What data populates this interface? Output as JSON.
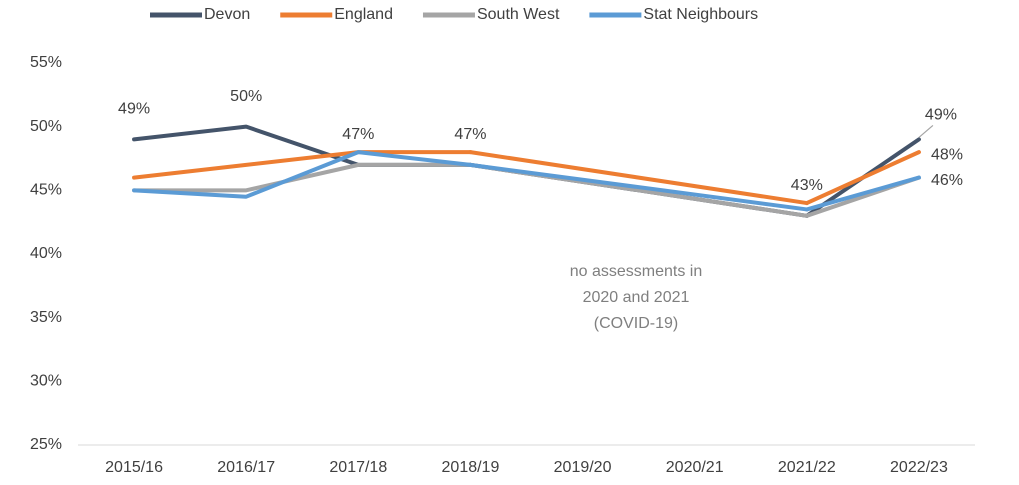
{
  "chart_data": {
    "type": "line",
    "categories": [
      "2015/16",
      "2016/17",
      "2017/18",
      "2018/19",
      "2019/20",
      "2020/21",
      "2021/22",
      "2022/23"
    ],
    "series": [
      {
        "name": "Devon",
        "color": "#44546a",
        "values": [
          49,
          50,
          47,
          47,
          null,
          null,
          43,
          49
        ],
        "value_labels": [
          "49%",
          "50%",
          "47%",
          "47%",
          null,
          null,
          "43%",
          "49%"
        ]
      },
      {
        "name": "England",
        "color": "#ed7d31",
        "values": [
          46,
          47,
          48,
          48,
          null,
          null,
          44,
          48
        ],
        "value_labels": [
          null,
          null,
          null,
          null,
          null,
          null,
          null,
          "48%"
        ]
      },
      {
        "name": "South West",
        "color": "#a5a5a5",
        "values": [
          45,
          45,
          47,
          47,
          null,
          null,
          43,
          46
        ]
      },
      {
        "name": "Stat Neighbours",
        "color": "#5b9bd5",
        "values": [
          45,
          44.5,
          48,
          47,
          null,
          null,
          43.5,
          46
        ],
        "value_labels": [
          null,
          null,
          null,
          null,
          null,
          null,
          null,
          "46%"
        ]
      }
    ],
    "ylim": [
      25,
      55
    ],
    "yticks": [
      {
        "value": 25,
        "label": "25%"
      },
      {
        "value": 30,
        "label": "30%"
      },
      {
        "value": 35,
        "label": "35%"
      },
      {
        "value": 40,
        "label": "40%"
      },
      {
        "value": 45,
        "label": "45%"
      },
      {
        "value": 50,
        "label": "50%"
      },
      {
        "value": 55,
        "label": "55%"
      }
    ],
    "annotation": [
      "no assessments in",
      "2020 and 2021",
      "(COVID-19)"
    ],
    "legend": "top",
    "grid": false
  }
}
